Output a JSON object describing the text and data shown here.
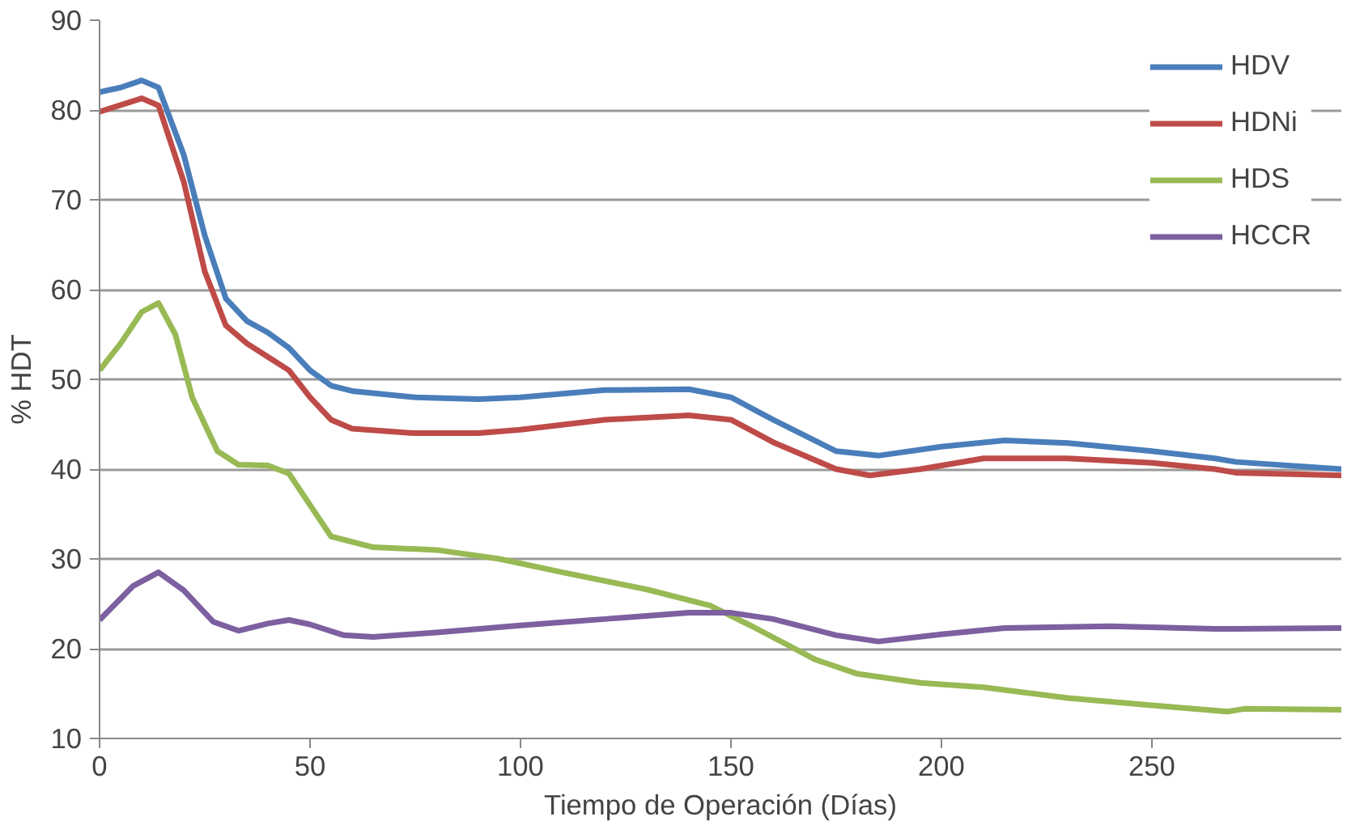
{
  "chart_data": {
    "type": "line",
    "xlabel": "Tiempo de Operación (Días)",
    "ylabel": "% HDT",
    "xlim": [
      0,
      295
    ],
    "xticks": [
      0,
      50,
      100,
      150,
      200,
      250
    ],
    "ylim": [
      10,
      90
    ],
    "yticks": [
      10,
      20,
      30,
      40,
      50,
      60,
      70,
      80,
      90
    ],
    "grid": "y",
    "legend": "top right",
    "line_style": "solid",
    "series": [
      {
        "name": "HDV",
        "color": "#4a7ebb",
        "x": [
          0,
          5,
          10,
          14,
          20,
          25,
          30,
          35,
          40,
          45,
          50,
          55,
          60,
          75,
          90,
          100,
          120,
          140,
          150,
          160,
          175,
          185,
          200,
          215,
          230,
          250,
          265,
          270,
          295
        ],
        "values": [
          82,
          82.5,
          83.3,
          82.5,
          75,
          66,
          59,
          56.5,
          55.2,
          53.5,
          51,
          49.3,
          48.7,
          48,
          47.8,
          48,
          48.8,
          48.9,
          48,
          45.5,
          42,
          41.5,
          42.5,
          43.2,
          42.9,
          42,
          41.2,
          40.8,
          40
        ]
      },
      {
        "name": "HDNi",
        "color": "#be4b48",
        "x": [
          0,
          10,
          14,
          20,
          25,
          30,
          35,
          40,
          45,
          50,
          55,
          60,
          75,
          90,
          100,
          120,
          140,
          150,
          160,
          175,
          183,
          195,
          210,
          230,
          250,
          265,
          270,
          295
        ],
        "values": [
          79.8,
          81.3,
          80.5,
          72,
          62,
          56,
          54,
          52.5,
          51,
          48,
          45.5,
          44.5,
          44,
          44,
          44.4,
          45.5,
          46,
          45.5,
          43,
          40,
          39.3,
          40,
          41.2,
          41.2,
          40.7,
          40,
          39.6,
          39.3
        ]
      },
      {
        "name": "HDS",
        "color": "#98b954",
        "x": [
          0,
          5,
          10,
          14,
          18,
          22,
          28,
          33,
          40,
          45,
          50,
          55,
          65,
          80,
          95,
          110,
          130,
          145,
          155,
          170,
          180,
          195,
          210,
          230,
          250,
          265,
          268,
          272,
          295
        ],
        "values": [
          51,
          54,
          57.5,
          58.5,
          55,
          48,
          42,
          40.5,
          40.4,
          39.5,
          36,
          32.5,
          31.3,
          31,
          30,
          28.5,
          26.6,
          24.8,
          22.5,
          18.8,
          17.2,
          16.2,
          15.7,
          14.5,
          13.7,
          13.1,
          13,
          13.3,
          13.2
        ]
      },
      {
        "name": "HCCR",
        "color": "#7d60a0",
        "x": [
          0,
          8,
          14,
          20,
          27,
          33,
          40,
          45,
          50,
          58,
          65,
          80,
          100,
          120,
          140,
          150,
          160,
          175,
          185,
          200,
          215,
          240,
          265,
          295
        ],
        "values": [
          23.2,
          27,
          28.5,
          26.5,
          23,
          22,
          22.8,
          23.2,
          22.7,
          21.5,
          21.3,
          21.8,
          22.6,
          23.3,
          24,
          24,
          23.3,
          21.5,
          20.8,
          21.6,
          22.3,
          22.5,
          22.2,
          22.3
        ]
      }
    ]
  }
}
